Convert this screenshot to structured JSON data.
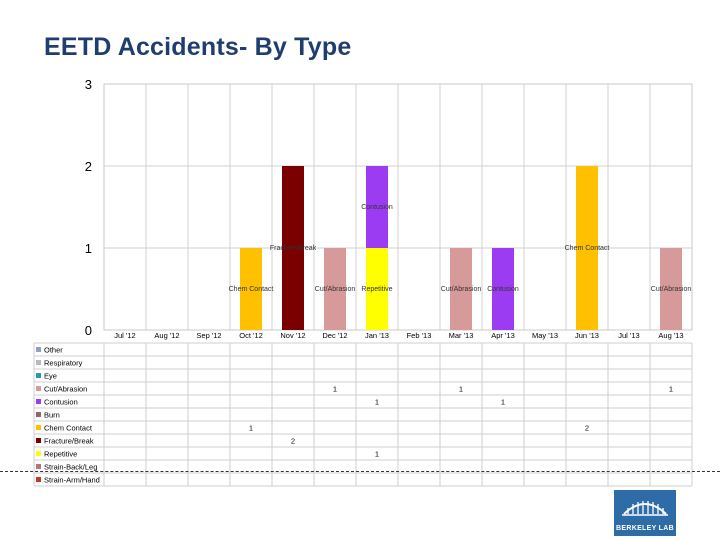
{
  "slide": {
    "title": "EETD Accidents- By Type"
  },
  "chart_data": {
    "type": "bar",
    "stacked": true,
    "title": "EETD Accidents- By Type",
    "categories": [
      "Jul '12",
      "Aug '12",
      "Sep '12",
      "Oct '12",
      "Nov '12",
      "Dec '12",
      "Jan '13",
      "Feb '13",
      "Mar '13",
      "Apr '13",
      "May '13",
      "Jun '13",
      "Jul '13",
      "Aug '13"
    ],
    "ylim": [
      0,
      3
    ],
    "yticks": [
      "0",
      "1",
      "2",
      "3"
    ],
    "grid": true,
    "series": [
      {
        "name": "Other",
        "color": "#8e9fbf",
        "values": [
          null,
          null,
          null,
          null,
          null,
          null,
          null,
          null,
          null,
          null,
          null,
          null,
          null,
          null
        ]
      },
      {
        "name": "Respiratory",
        "color": "#b6b9c4",
        "values": [
          null,
          null,
          null,
          null,
          null,
          null,
          null,
          null,
          null,
          null,
          null,
          null,
          null,
          null
        ]
      },
      {
        "name": "Eye",
        "color": "#2c9aa3",
        "values": [
          null,
          null,
          null,
          null,
          null,
          null,
          null,
          null,
          null,
          null,
          null,
          null,
          null,
          null
        ]
      },
      {
        "name": "Cut/Abrasion",
        "color": "#d69a9a",
        "values": [
          null,
          null,
          null,
          null,
          null,
          1,
          null,
          null,
          1,
          null,
          null,
          null,
          null,
          1
        ]
      },
      {
        "name": "Contusion",
        "color": "#9b3cf2",
        "values": [
          null,
          null,
          null,
          null,
          null,
          null,
          1,
          null,
          null,
          1,
          null,
          null,
          null,
          null
        ]
      },
      {
        "name": "Burn",
        "color": "#8f6a62",
        "values": [
          null,
          null,
          null,
          null,
          null,
          null,
          null,
          null,
          null,
          null,
          null,
          null,
          null,
          null
        ]
      },
      {
        "name": "Chem Contact",
        "color": "#ffc000",
        "values": [
          null,
          null,
          null,
          1,
          null,
          null,
          null,
          null,
          null,
          null,
          null,
          2,
          null,
          null
        ]
      },
      {
        "name": "Fracture/Break",
        "color": "#7a0000",
        "values": [
          null,
          null,
          null,
          null,
          2,
          null,
          null,
          null,
          null,
          null,
          null,
          null,
          null,
          null
        ]
      },
      {
        "name": "Repetitive",
        "color": "#ffff00",
        "values": [
          null,
          null,
          null,
          null,
          null,
          null,
          1,
          null,
          null,
          null,
          null,
          null,
          null,
          null
        ]
      },
      {
        "name": "Strain-Back/Leg",
        "color": "#b07878",
        "values": [
          null,
          null,
          null,
          null,
          null,
          null,
          null,
          null,
          null,
          null,
          null,
          null,
          null,
          null
        ]
      },
      {
        "name": "Strain-Arm/Hand",
        "color": "#c0392b",
        "values": [
          null,
          null,
          null,
          null,
          null,
          null,
          null,
          null,
          null,
          null,
          null,
          null,
          null,
          null
        ]
      }
    ],
    "data_labels": [
      {
        "text": "Chem Contact",
        "category": "Oct '12",
        "value": 0.5
      },
      {
        "text": "Fracture/Break",
        "category": "Nov '12",
        "value": 1
      },
      {
        "text": "Cut/Abrasion",
        "category": "Dec '12",
        "value": 0.5
      },
      {
        "text": "Repetitive",
        "category": "Jan '13",
        "value": 0.5
      },
      {
        "text": "Contusion",
        "category": "Jan '13",
        "value": 1.5
      },
      {
        "text": "Cut/Abrasion",
        "category": "Mar '13",
        "value": 0.5
      },
      {
        "text": "Contusion",
        "category": "Apr '13",
        "value": 0.5
      },
      {
        "text": "Chem Contact",
        "category": "Jun '13",
        "value": 1
      },
      {
        "text": "Cut/Abrasion",
        "category": "Aug '13",
        "value": 0.5
      }
    ]
  },
  "logo": {
    "text": "BERKELEY LAB"
  }
}
